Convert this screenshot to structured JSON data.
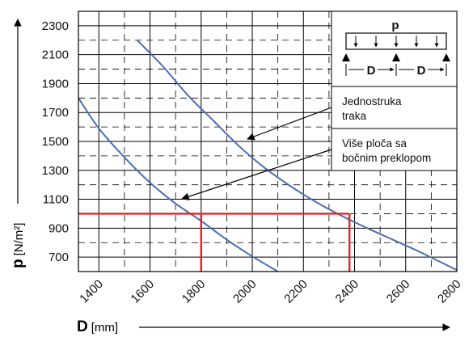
{
  "chart_data": {
    "type": "line",
    "title": "",
    "xlabel": {
      "symbol": "D",
      "unit": "[mm]"
    },
    "ylabel": {
      "symbol": "p",
      "unit": "[N/m²]"
    },
    "xlim": [
      1320,
      2800
    ],
    "ylim": [
      600,
      2400
    ],
    "x_ticks": [
      1400,
      1600,
      1800,
      2000,
      2200,
      2400,
      2600,
      2800
    ],
    "y_ticks": [
      700,
      900,
      1100,
      1300,
      1500,
      1700,
      1900,
      2100,
      2300
    ],
    "grid": "solid at labelled ticks, dashed at intermediate values",
    "series": [
      {
        "name": "Više ploča sa bočnim preklopom",
        "color": "#4a6fb0",
        "x": [
          1320,
          1400,
          1500,
          1600,
          1700,
          1800,
          1900,
          2000,
          2100
        ],
        "y": [
          1800,
          1590,
          1390,
          1215,
          1070,
          950,
          820,
          705,
          600
        ]
      },
      {
        "name": "Jednostruka traka",
        "color": "#4a6fb0",
        "x": [
          1550,
          1650,
          1750,
          1850,
          1950,
          2050,
          2150,
          2250,
          2350,
          2450,
          2550,
          2650,
          2800
        ],
        "y": [
          2200,
          2020,
          1815,
          1640,
          1465,
          1315,
          1190,
          1080,
          985,
          900,
          820,
          740,
          610
        ]
      }
    ],
    "reference": {
      "p": 1000,
      "D_values": [
        1800,
        2380
      ],
      "color": "#e0242b"
    },
    "annotations": [
      {
        "id": "single",
        "lines": [
          "Jednostruka",
          "traka"
        ]
      },
      {
        "id": "multi",
        "lines": [
          "Više ploča sa",
          "bočnim preklopom"
        ]
      }
    ],
    "inset": {
      "load_label": "p",
      "span_label": "D"
    }
  }
}
